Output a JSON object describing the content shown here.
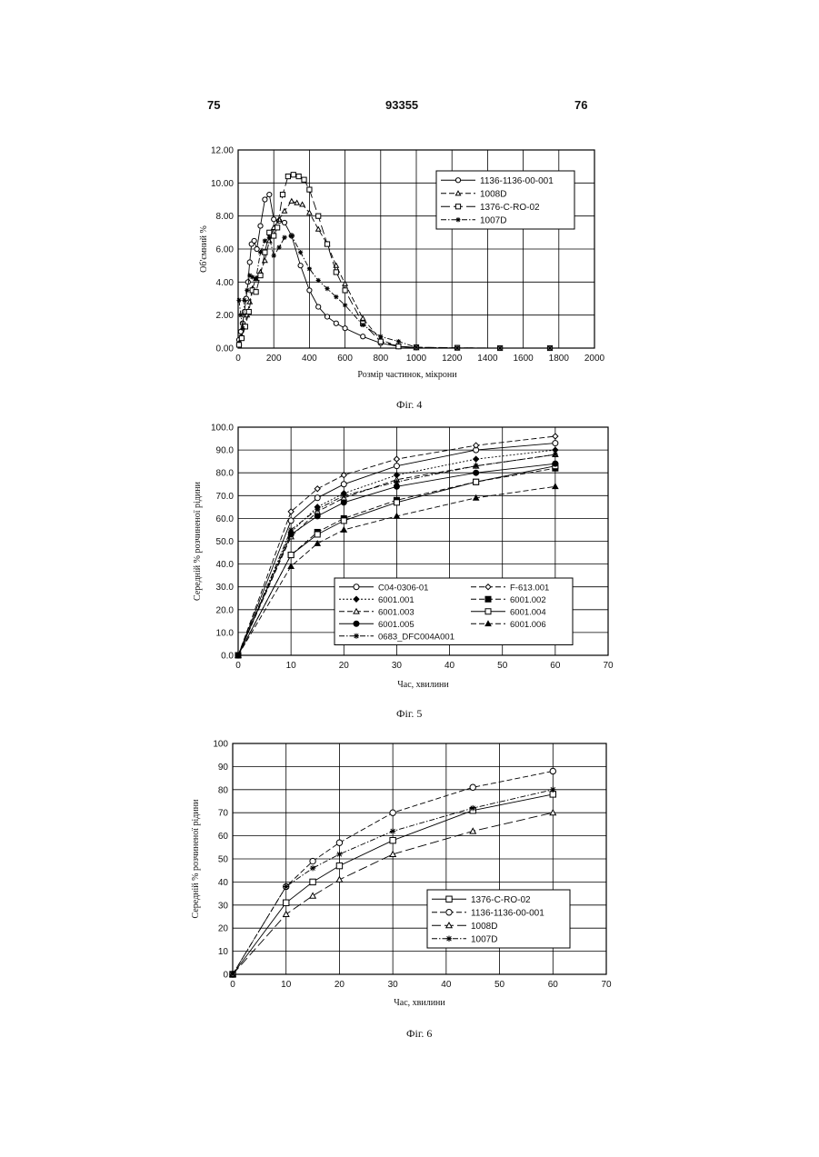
{
  "header": {
    "left_page": "75",
    "center_number": "93355",
    "right_page": "76"
  },
  "captions": {
    "fig4": "Фіг. 4",
    "fig5": "Фіг. 5",
    "fig6": "Фіг. 6"
  },
  "chart_data": [
    {
      "type": "line",
      "xlabel": "Розмір частинок, мікрони",
      "ylabel": "Об'ємний %",
      "xlim": [
        0,
        2000
      ],
      "ylim": [
        0,
        12
      ],
      "xticks": [
        0,
        200,
        400,
        600,
        800,
        1000,
        1200,
        1400,
        1600,
        1800,
        2000
      ],
      "xtick_labels": [
        "0",
        "200",
        "400",
        "600",
        "800",
        "1000",
        "1200",
        "1400",
        "1600",
        "1800",
        "2000"
      ],
      "yticks": [
        0,
        2,
        4,
        6,
        8,
        10,
        12
      ],
      "ytick_labels": [
        "0.00",
        "2.00",
        "4.00",
        "6.00",
        "8.00",
        "10.00",
        "12.00"
      ],
      "grid": true,
      "legend_position": "top-right",
      "series": [
        {
          "name": "1136-1136-00-001",
          "marker": "circle-open",
          "dash": "solid",
          "x": [
            5,
            15,
            25,
            35,
            45,
            55,
            65,
            75,
            90,
            105,
            125,
            150,
            175,
            200,
            230,
            260,
            300,
            350,
            400,
            450,
            500,
            550,
            600,
            700,
            800,
            900,
            1000
          ],
          "y": [
            0.5,
            1.0,
            1.5,
            2.2,
            3.0,
            4.0,
            5.2,
            6.3,
            6.5,
            6.0,
            7.4,
            9.0,
            9.3,
            7.8,
            7.7,
            7.6,
            6.8,
            5.0,
            3.5,
            2.5,
            1.9,
            1.5,
            1.2,
            0.7,
            0.3,
            0.1,
            0.03
          ]
        },
        {
          "name": "1008D",
          "marker": "triangle-open",
          "dash": "dashed",
          "x": [
            5,
            20,
            35,
            50,
            65,
            80,
            100,
            125,
            150,
            175,
            200,
            230,
            260,
            300,
            330,
            360,
            400,
            450,
            500,
            550,
            600,
            700,
            800,
            900,
            1000
          ],
          "y": [
            0.3,
            0.7,
            1.3,
            2.0,
            2.8,
            3.6,
            4.2,
            4.6,
            5.3,
            6.5,
            7.3,
            7.8,
            8.3,
            8.9,
            8.8,
            8.7,
            8.2,
            7.2,
            6.3,
            5.0,
            3.9,
            1.8,
            0.5,
            0.1,
            0.02
          ]
        },
        {
          "name": "1376-C-RO-02",
          "marker": "square-open",
          "dash": "longdash",
          "x": [
            5,
            20,
            40,
            60,
            80,
            100,
            125,
            150,
            175,
            200,
            220,
            250,
            280,
            310,
            340,
            370,
            400,
            450,
            500,
            550,
            600,
            700,
            800,
            900,
            1000,
            1230,
            1470,
            1750
          ],
          "y": [
            0.2,
            0.6,
            1.3,
            2.2,
            3.5,
            3.4,
            4.4,
            5.8,
            7.0,
            6.8,
            7.3,
            9.3,
            10.4,
            10.5,
            10.4,
            10.2,
            9.6,
            8.0,
            6.3,
            4.6,
            3.5,
            1.5,
            0.4,
            0.1,
            0.05,
            0.02,
            0.0,
            0.0
          ]
        },
        {
          "name": "1007D",
          "marker": "asterisk",
          "dash": "dashdot",
          "x": [
            5,
            15,
            25,
            35,
            50,
            65,
            80,
            100,
            125,
            150,
            175,
            200,
            230,
            260,
            300,
            350,
            400,
            450,
            500,
            550,
            600,
            700,
            800,
            900,
            1000,
            1230,
            1470,
            1750
          ],
          "y": [
            2.9,
            2.0,
            1.2,
            2.9,
            3.5,
            4.4,
            4.3,
            4.2,
            5.8,
            6.5,
            6.7,
            5.6,
            6.1,
            6.7,
            6.8,
            5.8,
            4.8,
            4.1,
            3.6,
            3.1,
            2.6,
            1.4,
            0.7,
            0.4,
            0.05,
            0.01,
            0.0,
            0.0
          ]
        }
      ]
    },
    {
      "type": "line",
      "xlabel": "Час, хвилини",
      "ylabel": "Середній % розчиненої рідини",
      "xlim": [
        0,
        70
      ],
      "ylim": [
        0,
        100
      ],
      "xticks": [
        0,
        10,
        20,
        30,
        40,
        50,
        60,
        70
      ],
      "xtick_labels": [
        "0",
        "10",
        "20",
        "30",
        "40",
        "50",
        "60",
        "70"
      ],
      "yticks": [
        0,
        10,
        20,
        30,
        40,
        50,
        60,
        70,
        80,
        90,
        100
      ],
      "ytick_labels": [
        "0.0",
        "10.0",
        "20.0",
        "30.0",
        "40.0",
        "50.0",
        "60.0",
        "70.0",
        "80.0",
        "90.0",
        "100.0"
      ],
      "grid": true,
      "legend_position": "bottom-right",
      "x": [
        0,
        10,
        15,
        20,
        30,
        45,
        60
      ],
      "series": [
        {
          "name": "C04-0306-01",
          "marker": "circle-open",
          "dash": "solid",
          "values": [
            0,
            59,
            69,
            75,
            83,
            90,
            93
          ]
        },
        {
          "name": "F-613.001",
          "marker": "diamond-open",
          "dash": "dashed",
          "values": [
            0,
            63,
            73,
            79,
            86,
            92,
            96
          ]
        },
        {
          "name": "6001.001",
          "marker": "diamond-filled",
          "dash": "dotted",
          "values": [
            0,
            54,
            65,
            71,
            79,
            86,
            90
          ]
        },
        {
          "name": "6001.002",
          "marker": "square-filled",
          "dash": "dashed",
          "values": [
            0,
            44,
            54,
            60,
            68,
            76,
            82
          ]
        },
        {
          "name": "6001.003",
          "marker": "triangle-open",
          "dash": "dashed",
          "values": [
            0,
            52,
            63,
            69,
            77,
            83,
            88
          ]
        },
        {
          "name": "6001.004",
          "marker": "square-open",
          "dash": "solid",
          "values": [
            0,
            44,
            53,
            59,
            67,
            76,
            83
          ]
        },
        {
          "name": "6001.005",
          "marker": "circle-filled",
          "dash": "solid",
          "values": [
            0,
            53,
            61,
            67,
            74,
            80,
            84
          ]
        },
        {
          "name": "6001.006",
          "marker": "triangle-filled",
          "dash": "dashed",
          "values": [
            0,
            39,
            49,
            55,
            61,
            69,
            74
          ]
        },
        {
          "name": "0683_DFC004A001",
          "marker": "asterisk",
          "dash": "dashdot",
          "values": [
            0,
            55,
            64,
            70,
            76,
            83,
            88
          ]
        }
      ]
    },
    {
      "type": "line",
      "xlabel": "Час, хвилини",
      "ylabel": "Середній % розчиненої рідини",
      "xlim": [
        0,
        70
      ],
      "ylim": [
        0,
        100
      ],
      "xticks": [
        0,
        10,
        20,
        30,
        40,
        50,
        60,
        70
      ],
      "xtick_labels": [
        "0",
        "10",
        "20",
        "30",
        "40",
        "50",
        "60",
        "70"
      ],
      "yticks": [
        0,
        10,
        20,
        30,
        40,
        50,
        60,
        70,
        80,
        90,
        100
      ],
      "ytick_labels": [
        "0",
        "10",
        "20",
        "30",
        "40",
        "50",
        "60",
        "70",
        "80",
        "90",
        "100"
      ],
      "grid": true,
      "legend_position": "bottom-right",
      "x": [
        0,
        10,
        15,
        20,
        30,
        45,
        60
      ],
      "series": [
        {
          "name": "1376-C-RO-02",
          "marker": "square-open",
          "dash": "solid",
          "values": [
            0,
            31,
            40,
            47,
            58,
            71,
            78
          ]
        },
        {
          "name": "1136-1136-00-001",
          "marker": "circle-open",
          "dash": "dashed",
          "values": [
            0,
            38,
            49,
            57,
            70,
            81,
            88
          ]
        },
        {
          "name": "1008D",
          "marker": "triangle-open",
          "dash": "longdash",
          "values": [
            0,
            26,
            34,
            41,
            52,
            62,
            70
          ]
        },
        {
          "name": "1007D",
          "marker": "asterisk",
          "dash": "dashdot",
          "values": [
            0,
            38,
            46,
            52,
            62,
            72,
            80
          ]
        }
      ]
    }
  ]
}
